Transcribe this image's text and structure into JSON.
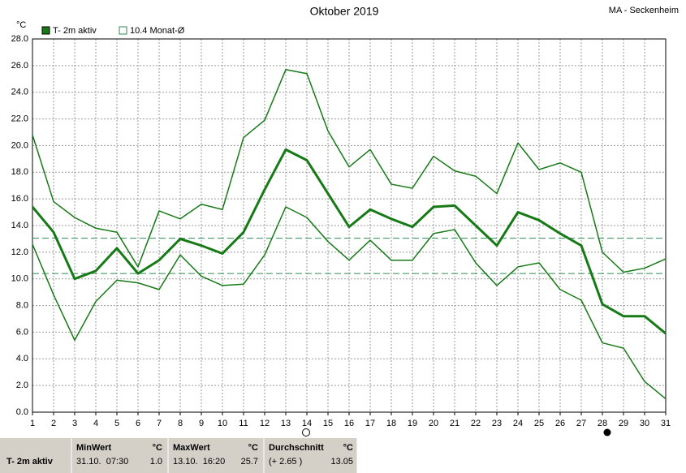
{
  "chart_data": {
    "type": "line",
    "title": "Oktober 2019",
    "subtitle": "MA - Seckenheim",
    "y_label": "°C",
    "x": [
      1,
      2,
      3,
      4,
      5,
      6,
      7,
      8,
      9,
      10,
      11,
      12,
      13,
      14,
      15,
      16,
      17,
      18,
      19,
      20,
      21,
      22,
      23,
      24,
      25,
      26,
      27,
      28,
      29,
      30,
      31
    ],
    "xlim": [
      1,
      31
    ],
    "ylim": [
      0,
      28
    ],
    "yticks": [
      {
        "value": 0,
        "label": "0.0"
      },
      {
        "value": 2,
        "label": "2.0"
      },
      {
        "value": 4,
        "label": "4.0"
      },
      {
        "value": 6,
        "label": "6.0"
      },
      {
        "value": 8,
        "label": "8.0"
      },
      {
        "value": 10,
        "label": "10.0"
      },
      {
        "value": 12,
        "label": "12.0"
      },
      {
        "value": 14,
        "label": "14.0"
      },
      {
        "value": 16,
        "label": "16.0"
      },
      {
        "value": 18,
        "label": "18.0"
      },
      {
        "value": 20,
        "label": "20.0"
      },
      {
        "value": 22,
        "label": "22.0"
      },
      {
        "value": 24,
        "label": "24.0"
      },
      {
        "value": 26,
        "label": "26.0"
      },
      {
        "value": 28,
        "label": "28.0"
      }
    ],
    "grid": true,
    "series": [
      {
        "name": "T- 2m aktiv",
        "color": "#167a16",
        "width": 3,
        "values": [
          15.4,
          13.5,
          10.0,
          10.6,
          12.3,
          10.4,
          11.4,
          13.0,
          12.5,
          11.9,
          13.5,
          16.7,
          19.7,
          18.9,
          16.4,
          13.9,
          15.2,
          14.5,
          13.9,
          15.4,
          15.5,
          14.0,
          12.5,
          15.0,
          14.4,
          13.4,
          12.5,
          8.1,
          7.2,
          7.2,
          5.9
        ]
      },
      {
        "color": "#167a16",
        "width": 1.5,
        "values": [
          20.8,
          15.8,
          14.6,
          13.8,
          13.5,
          10.9,
          15.1,
          14.5,
          15.6,
          15.2,
          20.6,
          21.9,
          25.7,
          25.4,
          21.1,
          18.4,
          19.7,
          17.1,
          16.8,
          19.2,
          18.1,
          17.7,
          16.4,
          20.2,
          18.2,
          18.7,
          18.0,
          12.0,
          10.5,
          10.8,
          11.5
        ]
      },
      {
        "color": "#167a16",
        "width": 1.5,
        "values": [
          12.6,
          8.8,
          5.4,
          8.3,
          9.9,
          9.7,
          9.2,
          11.8,
          10.2,
          9.5,
          9.6,
          11.8,
          15.4,
          14.6,
          12.8,
          11.4,
          12.9,
          11.4,
          11.4,
          13.4,
          13.7,
          11.2,
          9.5,
          10.9,
          11.2,
          9.2,
          8.4,
          5.2,
          4.8,
          2.3,
          1.0
        ]
      }
    ],
    "reference_lines": [
      {
        "name": "10.4 Monat-Ø",
        "value": 10.4,
        "color": "#2e8b57"
      },
      {
        "value": 13.05,
        "color": "#2e8b57"
      }
    ]
  },
  "summary_table": {
    "row_label": "T- 2m aktiv",
    "columns": [
      {
        "header": "MinWert",
        "unit": "°C",
        "when": "31.10.  07:30",
        "value": "1.0"
      },
      {
        "header": "MaxWert",
        "unit": "°C",
        "when": "13.10.  16:20",
        "value": "25.7"
      },
      {
        "header": "Durchschnitt",
        "unit": "°C",
        "when": "(+ 2.65 )",
        "value": "13.05"
      }
    ]
  }
}
